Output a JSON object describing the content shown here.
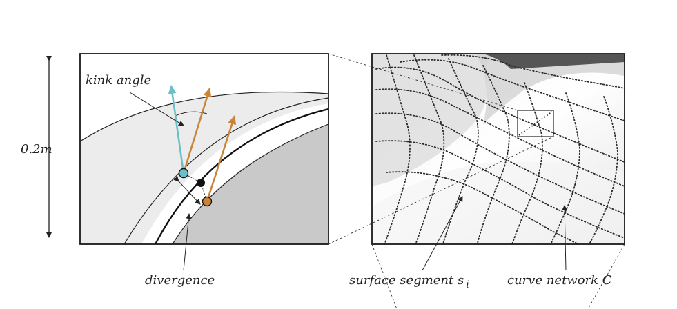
{
  "labels": {
    "scale": "0.2m",
    "kink": "kink angle",
    "divergence": "divergence",
    "surface_segment": "surface segment s",
    "surface_segment_sub": "i",
    "curve_network": "curve network C"
  },
  "colors": {
    "panel_light": "#e9e9e9",
    "panel_dark": "#c8c8c8",
    "cyan_arrow": "#6bbfc7",
    "orange_arrow": "#c9843a",
    "curve": "#2a2a2a",
    "frame": "#1a1a1a"
  }
}
